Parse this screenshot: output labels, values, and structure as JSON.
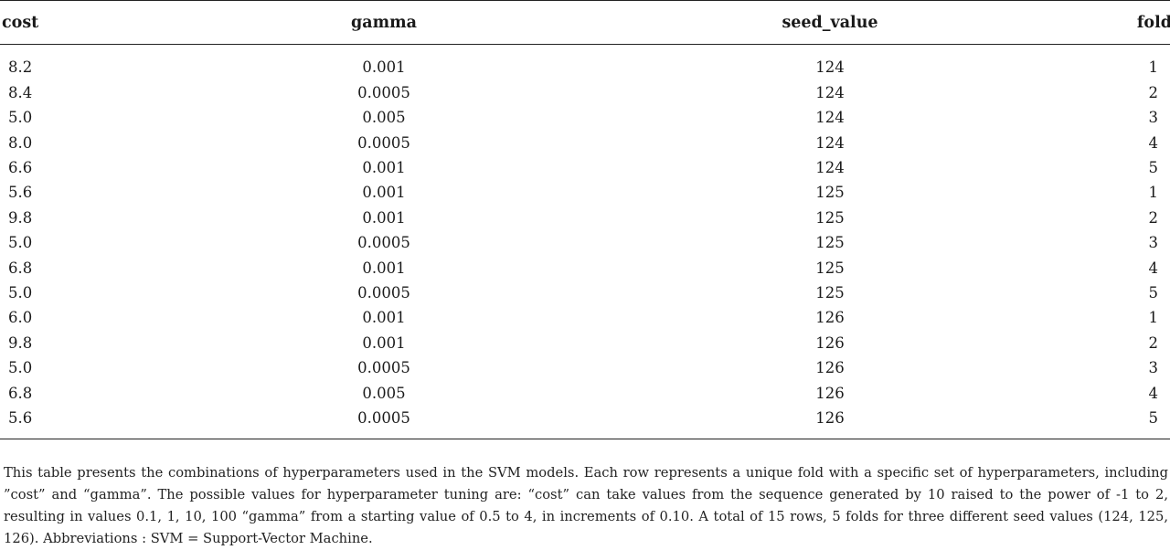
{
  "table": {
    "headers": [
      "cost",
      "gamma",
      "seed_value",
      "fold"
    ],
    "rows": [
      [
        "8.2",
        "0.001",
        "124",
        "1"
      ],
      [
        "8.4",
        "0.0005",
        "124",
        "2"
      ],
      [
        "5.0",
        "0.005",
        "124",
        "3"
      ],
      [
        "8.0",
        "0.0005",
        "124",
        "4"
      ],
      [
        "6.6",
        "0.001",
        "124",
        "5"
      ],
      [
        "5.6",
        "0.001",
        "125",
        "1"
      ],
      [
        "9.8",
        "0.001",
        "125",
        "2"
      ],
      [
        "5.0",
        "0.0005",
        "125",
        "3"
      ],
      [
        "6.8",
        "0.001",
        "125",
        "4"
      ],
      [
        "5.0",
        "0.0005",
        "125",
        "5"
      ],
      [
        "6.0",
        "0.001",
        "126",
        "1"
      ],
      [
        "9.8",
        "0.001",
        "126",
        "2"
      ],
      [
        "5.0",
        "0.0005",
        "126",
        "3"
      ],
      [
        "6.8",
        "0.005",
        "126",
        "4"
      ],
      [
        "5.6",
        "0.0005",
        "126",
        "5"
      ]
    ]
  },
  "caption": "This table presents the combinations of hyperparameters used in the SVM models. Each row represents a unique fold with a specific set of hyperparameters, including ”cost” and “gamma”. The possible values for hyperparameter tuning are: “cost” can take values from the sequence generated by 10 raised to the power of -1 to 2, resulting in values 0.1, 1, 10, 100 “gamma” from a starting value of 0.5 to 4, in increments of 0.10. A total of 15 rows, 5 folds for three different seed values (124, 125, 126). Abbreviations : SVM = Support-Vector Machine."
}
